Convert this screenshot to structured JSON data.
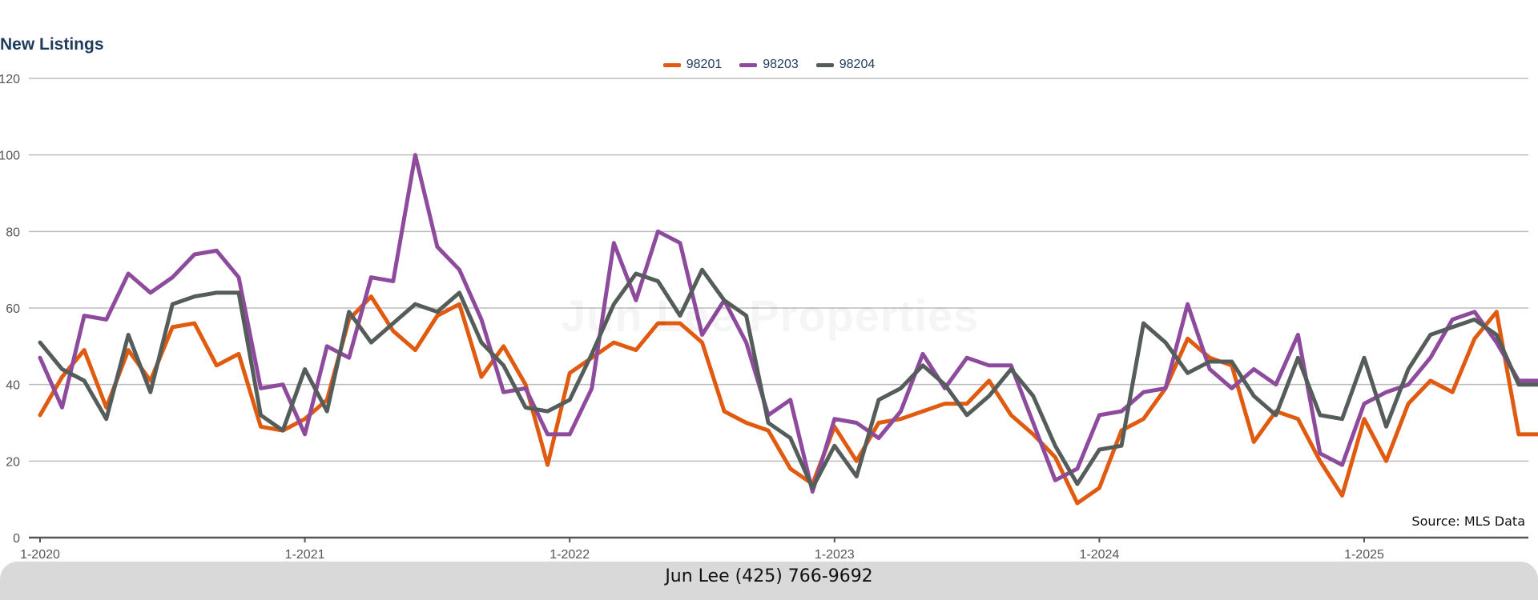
{
  "chart_data": {
    "type": "line",
    "title": "New Listings",
    "xlabel": "",
    "ylabel": "",
    "ylim": [
      0,
      120
    ],
    "y_ticks": [
      0,
      20,
      40,
      60,
      80,
      100,
      120
    ],
    "x_tick_labels": [
      "1-2020",
      "1-2021",
      "1-2022",
      "1-2023",
      "1-2024",
      "1-2025"
    ],
    "x_range": [
      "1-2020",
      "9-2025"
    ],
    "grid": "horizontal",
    "legend_position": "top-center",
    "x": [
      "1-2020",
      "2-2020",
      "3-2020",
      "4-2020",
      "5-2020",
      "6-2020",
      "7-2020",
      "8-2020",
      "9-2020",
      "10-2020",
      "11-2020",
      "12-2020",
      "1-2021",
      "2-2021",
      "3-2021",
      "4-2021",
      "5-2021",
      "6-2021",
      "7-2021",
      "8-2021",
      "9-2021",
      "10-2021",
      "11-2021",
      "12-2021",
      "1-2022",
      "2-2022",
      "3-2022",
      "4-2022",
      "5-2022",
      "6-2022",
      "7-2022",
      "8-2022",
      "9-2022",
      "10-2022",
      "11-2022",
      "12-2022",
      "1-2023",
      "2-2023",
      "3-2023",
      "4-2023",
      "5-2023",
      "6-2023",
      "7-2023",
      "8-2023",
      "9-2023",
      "10-2023",
      "11-2023",
      "12-2023",
      "1-2024",
      "2-2024",
      "3-2024",
      "4-2024",
      "5-2024",
      "6-2024",
      "7-2024",
      "8-2024",
      "9-2024",
      "10-2024",
      "11-2024",
      "12-2024",
      "1-2025",
      "2-2025",
      "3-2025",
      "4-2025",
      "5-2025",
      "6-2025",
      "7-2025",
      "8-2025",
      "9-2025"
    ],
    "series": [
      {
        "name": "98201",
        "color": "#e05a10",
        "values": [
          32,
          42,
          49,
          34,
          49,
          41,
          55,
          56,
          45,
          48,
          29,
          28,
          31,
          36,
          57,
          63,
          54,
          49,
          58,
          61,
          42,
          50,
          40,
          19,
          43,
          47,
          51,
          49,
          56,
          56,
          51,
          33,
          30,
          28,
          18,
          14,
          29,
          20,
          30,
          31,
          33,
          35,
          35,
          41,
          32,
          27,
          21,
          9,
          13,
          28,
          31,
          39,
          52,
          47,
          45,
          25,
          33,
          31,
          20,
          11,
          31,
          20,
          35,
          41,
          38,
          52,
          59,
          27,
          27
        ]
      },
      {
        "name": "98203",
        "color": "#8e4b9e",
        "values": [
          47,
          34,
          58,
          57,
          69,
          64,
          68,
          74,
          75,
          68,
          39,
          40,
          27,
          50,
          47,
          68,
          67,
          100,
          76,
          70,
          57,
          38,
          39,
          27,
          27,
          39,
          77,
          62,
          80,
          77,
          53,
          62,
          51,
          32,
          36,
          12,
          31,
          30,
          26,
          33,
          48,
          39,
          47,
          45,
          45,
          30,
          15,
          18,
          32,
          33,
          38,
          39,
          61,
          44,
          39,
          44,
          40,
          53,
          22,
          19,
          35,
          38,
          40,
          47,
          57,
          59,
          51,
          41,
          41
        ]
      },
      {
        "name": "98204",
        "color": "#555d5b",
        "values": [
          51,
          44,
          41,
          31,
          53,
          38,
          61,
          63,
          64,
          64,
          32,
          28,
          44,
          33,
          59,
          51,
          56,
          61,
          59,
          64,
          51,
          45,
          34,
          33,
          36,
          48,
          61,
          69,
          67,
          58,
          70,
          62,
          58,
          30,
          26,
          13,
          24,
          16,
          36,
          39,
          45,
          40,
          32,
          37,
          44,
          37,
          24,
          14,
          23,
          24,
          56,
          51,
          43,
          46,
          46,
          37,
          32,
          47,
          32,
          31,
          47,
          29,
          44,
          53,
          55,
          57,
          53,
          40,
          40
        ]
      }
    ]
  },
  "watermark": "Jun Lee Properties",
  "source_note": "Source: MLS Data",
  "footer": "Jun Lee (425) 766-9692"
}
